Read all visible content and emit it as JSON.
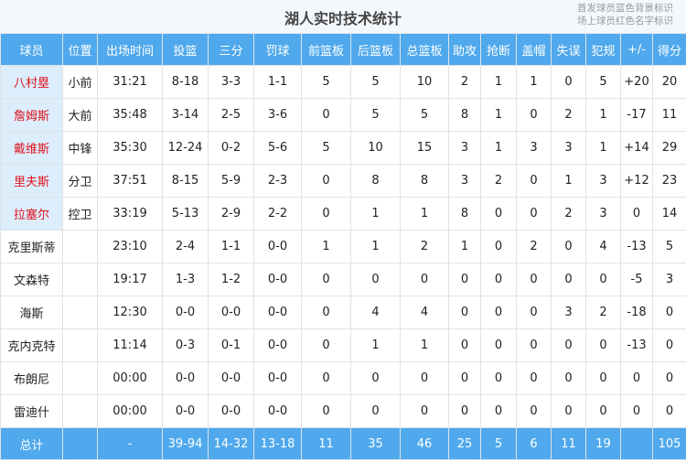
{
  "title": "湖人实时技术统计",
  "legend": [
    "首发球员蓝色背景标识",
    "场上球员红色名字标识"
  ],
  "colors": {
    "header": "#4fa9ec",
    "starter_bg": "#dcedfb",
    "oncourt_text": "#e0141e"
  },
  "columns": [
    "球员",
    "位置",
    "出场时间",
    "投篮",
    "三分",
    "罚球",
    "前篮板",
    "后篮板",
    "总篮板",
    "助攻",
    "抢断",
    "盖帽",
    "失误",
    "犯规",
    "+/-",
    "得分"
  ],
  "rows": [
    {
      "starter": true,
      "oncourt": true,
      "cells": [
        "八村塁",
        "小前",
        "31:21",
        "8-18",
        "3-3",
        "1-1",
        "5",
        "5",
        "10",
        "2",
        "1",
        "1",
        "0",
        "5",
        "+20",
        "20"
      ]
    },
    {
      "starter": true,
      "oncourt": true,
      "cells": [
        "詹姆斯",
        "大前",
        "35:48",
        "3-14",
        "2-5",
        "3-6",
        "0",
        "5",
        "5",
        "8",
        "1",
        "0",
        "2",
        "1",
        "-17",
        "11"
      ]
    },
    {
      "starter": true,
      "oncourt": true,
      "cells": [
        "戴维斯",
        "中锋",
        "35:30",
        "12-24",
        "0-2",
        "5-6",
        "5",
        "10",
        "15",
        "3",
        "1",
        "3",
        "3",
        "1",
        "+14",
        "29"
      ]
    },
    {
      "starter": true,
      "oncourt": true,
      "cells": [
        "里夫斯",
        "分卫",
        "37:51",
        "8-15",
        "5-9",
        "2-3",
        "0",
        "8",
        "8",
        "3",
        "2",
        "0",
        "1",
        "3",
        "+12",
        "23"
      ]
    },
    {
      "starter": true,
      "oncourt": true,
      "cells": [
        "拉塞尔",
        "控卫",
        "33:19",
        "5-13",
        "2-9",
        "2-2",
        "0",
        "1",
        "1",
        "8",
        "0",
        "0",
        "2",
        "3",
        "0",
        "14"
      ]
    },
    {
      "starter": false,
      "oncourt": false,
      "cells": [
        "克里斯蒂",
        "",
        "23:10",
        "2-4",
        "1-1",
        "0-0",
        "1",
        "1",
        "2",
        "1",
        "0",
        "2",
        "0",
        "4",
        "-13",
        "5"
      ]
    },
    {
      "starter": false,
      "oncourt": false,
      "cells": [
        "文森特",
        "",
        "19:17",
        "1-3",
        "1-2",
        "0-0",
        "0",
        "0",
        "0",
        "0",
        "0",
        "0",
        "0",
        "0",
        "-5",
        "3"
      ]
    },
    {
      "starter": false,
      "oncourt": false,
      "cells": [
        "海斯",
        "",
        "12:30",
        "0-0",
        "0-0",
        "0-0",
        "0",
        "4",
        "4",
        "0",
        "0",
        "0",
        "3",
        "2",
        "-18",
        "0"
      ]
    },
    {
      "starter": false,
      "oncourt": false,
      "cells": [
        "克内克特",
        "",
        "11:14",
        "0-3",
        "0-1",
        "0-0",
        "0",
        "1",
        "1",
        "0",
        "0",
        "0",
        "0",
        "0",
        "-13",
        "0"
      ]
    },
    {
      "starter": false,
      "oncourt": false,
      "cells": [
        "布朗尼",
        "",
        "00:00",
        "0-0",
        "0-0",
        "0-0",
        "0",
        "0",
        "0",
        "0",
        "0",
        "0",
        "0",
        "0",
        "0",
        "0"
      ]
    },
    {
      "starter": false,
      "oncourt": false,
      "cells": [
        "雷迪什",
        "",
        "00:00",
        "0-0",
        "0-0",
        "0-0",
        "0",
        "0",
        "0",
        "0",
        "0",
        "0",
        "0",
        "0",
        "0",
        "0"
      ]
    }
  ],
  "total": [
    "总计",
    "",
    "-",
    "39-94",
    "14-32",
    "13-18",
    "11",
    "35",
    "46",
    "25",
    "5",
    "6",
    "11",
    "19",
    "",
    "105"
  ]
}
